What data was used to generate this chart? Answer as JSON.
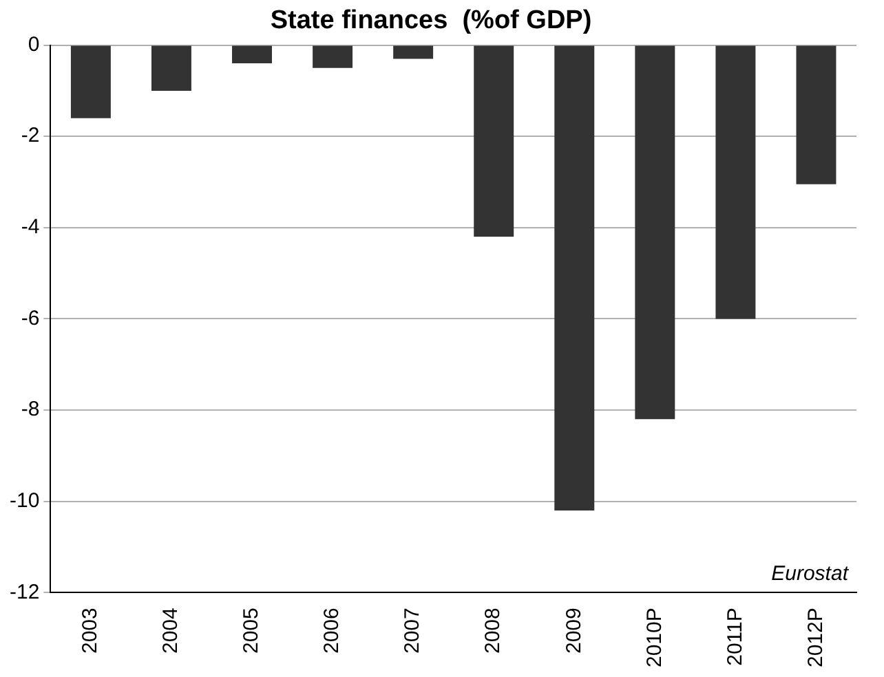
{
  "chart_data": {
    "type": "bar",
    "title": "State finances  (%of GDP)",
    "categories": [
      "2003",
      "2004",
      "2005",
      "2006",
      "2007",
      "2008",
      "2009",
      "2010P",
      "2011P",
      "2012P"
    ],
    "values": [
      -1.6,
      -1.0,
      -0.4,
      -0.5,
      -0.3,
      -4.2,
      -10.2,
      -8.2,
      -6.0,
      -3.05
    ],
    "color": "#333333",
    "ylim": [
      -12,
      0
    ],
    "yticks": [
      -12,
      -10,
      -8,
      -6,
      -4,
      -2,
      0
    ],
    "grid": "y",
    "annotations": [
      "Eurostat"
    ]
  }
}
